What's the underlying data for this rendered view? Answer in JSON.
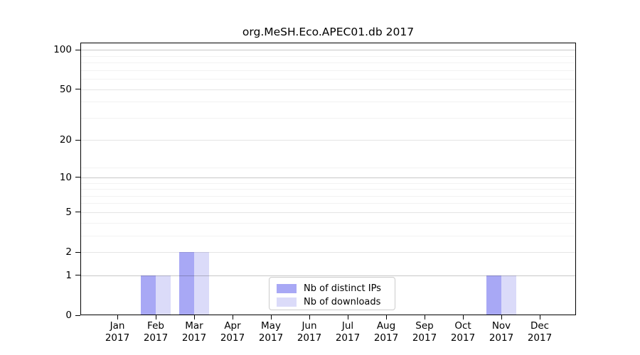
{
  "chart_data": {
    "type": "bar",
    "title": "org.MeSH.Eco.APEC01.db 2017",
    "categories": [
      "Jan 2017",
      "Feb 2017",
      "Mar 2017",
      "Apr 2017",
      "May 2017",
      "Jun 2017",
      "Jul 2017",
      "Aug 2017",
      "Sep 2017",
      "Oct 2017",
      "Nov 2017",
      "Dec 2017"
    ],
    "month_labels": [
      "Jan",
      "Feb",
      "Mar",
      "Apr",
      "May",
      "Jun",
      "Jul",
      "Aug",
      "Sep",
      "Oct",
      "Nov",
      "Dec"
    ],
    "year_label": "2017",
    "series": [
      {
        "name": "Nb of distinct IPs",
        "color": "#a8a8f5",
        "values": [
          0,
          1,
          2,
          0,
          0,
          0,
          0,
          0,
          0,
          0,
          1,
          0
        ]
      },
      {
        "name": "Nb of downloads",
        "color": "#dbdbf9",
        "values": [
          0,
          1,
          2,
          0,
          0,
          0,
          0,
          0,
          0,
          0,
          1,
          0
        ]
      }
    ],
    "y_axis": {
      "scale": "log10(1+value)",
      "tick_values": [
        0,
        1,
        2,
        5,
        10,
        20,
        50,
        100
      ],
      "tick_labels": [
        "0",
        "1",
        "2",
        "5",
        "10",
        "20",
        "50",
        "100"
      ],
      "minor_gridline_values": [
        3,
        4,
        6,
        7,
        8,
        9,
        12,
        30,
        40,
        60,
        70,
        80,
        90
      ],
      "range": [
        0,
        113.6
      ]
    },
    "x_axis": {
      "label_line1_is_month": true,
      "label_line2": "2017"
    },
    "legend": {
      "position": "inside-bottom-center",
      "entries": [
        "Nb of distinct IPs",
        "Nb of downloads"
      ]
    },
    "grid": true
  }
}
